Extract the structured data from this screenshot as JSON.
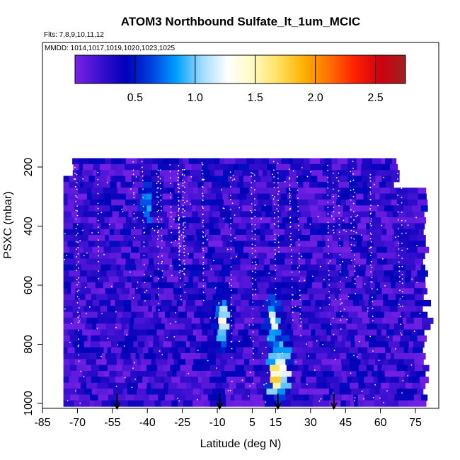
{
  "chart_data": {
    "type": "heatmap",
    "title": "ATOM3 Northbound Sulfate_lt_1um_MCIC",
    "flights_label": "Flts: 7,8,9,10,11,12",
    "mmdd_label": "MMDD: 1014,1017,1019,1020,1023,1025",
    "xlabel": "Latitude (deg N)",
    "ylabel": "PSXC (mbar)",
    "xlim": [
      -85,
      85
    ],
    "ylim": [
      1010,
      0
    ],
    "xticks": [
      -85,
      -70,
      -55,
      -40,
      -25,
      -10,
      5,
      15,
      30,
      45,
      60,
      75
    ],
    "xtick_labels": [
      "-85",
      "-70",
      "-55",
      "-40",
      "-25",
      "-10",
      "5",
      "15",
      "30",
      "45",
      "60",
      "75"
    ],
    "yticks": [
      200,
      400,
      600,
      800,
      1000
    ],
    "ytick_labels": [
      "200",
      "400",
      "600",
      "800",
      "1000"
    ],
    "colorbar": {
      "range": [
        0,
        2.75
      ],
      "ticks": [
        0.5,
        1.0,
        1.5,
        2.0,
        2.5
      ],
      "tick_labels": [
        "0.5",
        "1.0",
        "1.5",
        "2.0",
        "2.5"
      ],
      "colors": [
        "#7a22e6",
        "#3a10d0",
        "#0000b8",
        "#0040e0",
        "#00a0ff",
        "#a0dcff",
        "#ffffff",
        "#fffac0",
        "#ffe060",
        "#ffb000",
        "#ff7000",
        "#ff2000",
        "#d00010",
        "#a02020"
      ]
    },
    "data_extent": {
      "lat_range": [
        -76,
        78
      ],
      "pressure_range": [
        170,
        1010
      ]
    },
    "high_value_regions": [
      {
        "lat_center": -40,
        "pressure_center": 330,
        "value": 0.9
      },
      {
        "lat_center": -8,
        "pressure_center": 720,
        "value": 1.3
      },
      {
        "lat_center": 14,
        "pressure_center": 720,
        "value": 1.3
      },
      {
        "lat_center": 15,
        "pressure_center": 900,
        "value": 1.7
      },
      {
        "lat_center": 18,
        "pressure_center": 880,
        "value": 1.6
      }
    ],
    "arrow_latitudes": [
      -53,
      -9,
      16,
      40
    ]
  }
}
